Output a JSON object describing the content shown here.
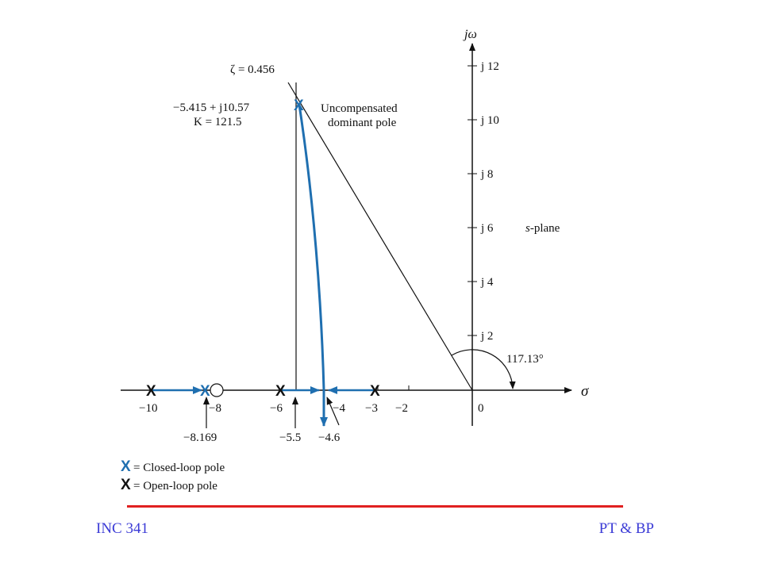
{
  "diagram": {
    "axis_labels": {
      "imag": "jω",
      "real": "σ",
      "origin": "0"
    },
    "real_ticks": [
      "−10",
      "−8",
      "−6",
      "−4",
      "−3",
      "−2"
    ],
    "imag_ticks": [
      "j 12",
      "j 10",
      "j 8",
      "j 6",
      "j 4",
      "j 2"
    ],
    "zeta_label": "ζ = 0.456",
    "pole_value": "−5.415 + j10.57",
    "gain_value": "K = 121.5",
    "pole_desc_line1": "Uncompensated",
    "pole_desc_line2": "dominant pole",
    "plane_label": "s-plane",
    "angle_label": "117.13°",
    "callout_8169": "−8.169",
    "callout_55": "−5.5",
    "callout_46": "−4.6",
    "legend": {
      "closed_symbol": "X",
      "closed_text": "= Closed-loop pole",
      "open_symbol": "X",
      "open_text": "= Open-loop pole"
    },
    "colors": {
      "locus": "#1f6fb0",
      "axis": "#111111",
      "rule": "#e02020",
      "footer": "#3b3bd6"
    }
  },
  "footer": {
    "left": "INC 341",
    "right": "PT & BP"
  }
}
